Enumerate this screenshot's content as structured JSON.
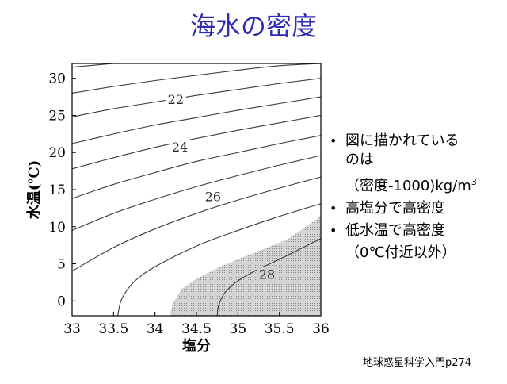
{
  "slide": {
    "title": "海水の密度",
    "citation": "地球惑星科学入門p274"
  },
  "bullets": {
    "b1_line1": "図に描かれている",
    "b1_line2": "のは",
    "b1_sub_prefix": "（密度-1000)kg/m",
    "b1_sub_sup": "3",
    "b2": "高塩分で高密度",
    "b3": "低水温で高密度",
    "b3_sub": "（0℃付近以外）"
  },
  "chart_data": {
    "type": "line",
    "title": "",
    "xlabel": "塩分",
    "ylabel": "水温(℃)",
    "xlim": [
      33,
      36
    ],
    "ylim": [
      -2,
      32
    ],
    "x_ticks": [
      33,
      33.5,
      34,
      34.5,
      35,
      35.5,
      36
    ],
    "x_tick_labels": [
      "33",
      "33.5",
      "34",
      "34.5",
      "35",
      "35.5",
      "36"
    ],
    "y_ticks": [
      0,
      5,
      10,
      15,
      20,
      25,
      30
    ],
    "y_tick_labels": [
      "0",
      "5",
      "10",
      "15",
      "20",
      "25",
      "30"
    ],
    "contour_labels": [
      {
        "text": "22",
        "x": 34.25,
        "y": 27.2
      },
      {
        "text": "24",
        "x": 34.3,
        "y": 20.8
      },
      {
        "text": "26",
        "x": 34.7,
        "y": 14.1
      },
      {
        "text": "28",
        "x": 35.35,
        "y": 3.6
      }
    ],
    "series": [
      {
        "points": [
          [
            33,
            31.5
          ],
          [
            33.5,
            32.0
          ],
          [
            34,
            32.5
          ]
        ]
      },
      {
        "points": [
          [
            33,
            28.0
          ],
          [
            33.5,
            28.9
          ],
          [
            34,
            29.7
          ],
          [
            34.5,
            30.4
          ],
          [
            35,
            31.1
          ],
          [
            35.5,
            31.7
          ],
          [
            36,
            32.0
          ]
        ]
      },
      {
        "points": [
          [
            33,
            24.8
          ],
          [
            33.5,
            25.9
          ],
          [
            34,
            26.8
          ],
          [
            34.5,
            27.7
          ],
          [
            35,
            28.5
          ],
          [
            35.5,
            29.3
          ],
          [
            36,
            30.0
          ]
        ]
      },
      {
        "points": [
          [
            33,
            21.2
          ],
          [
            33.5,
            22.5
          ],
          [
            34,
            23.7
          ],
          [
            34.5,
            24.7
          ],
          [
            35,
            25.7
          ],
          [
            35.5,
            26.6
          ],
          [
            36,
            27.5
          ]
        ]
      },
      {
        "points": [
          [
            33,
            17.8
          ],
          [
            33.5,
            19.3
          ],
          [
            34,
            20.7
          ],
          [
            34.5,
            21.9
          ],
          [
            35,
            23.0
          ],
          [
            35.5,
            24.0
          ],
          [
            36,
            25.0
          ]
        ]
      },
      {
        "points": [
          [
            33,
            13.8
          ],
          [
            33.5,
            15.7
          ],
          [
            34,
            17.3
          ],
          [
            34.5,
            18.8
          ],
          [
            35,
            20.0
          ],
          [
            35.5,
            21.2
          ],
          [
            36,
            22.3
          ]
        ]
      },
      {
        "points": [
          [
            33,
            9.5
          ],
          [
            33.5,
            11.8
          ],
          [
            34,
            13.7
          ],
          [
            34.5,
            15.4
          ],
          [
            35,
            16.9
          ],
          [
            35.5,
            18.3
          ],
          [
            36,
            19.6
          ]
        ]
      },
      {
        "points": [
          [
            33,
            4.0
          ],
          [
            33.5,
            7.2
          ],
          [
            34,
            9.7
          ],
          [
            34.5,
            11.8
          ],
          [
            35,
            13.6
          ],
          [
            35.5,
            15.2
          ],
          [
            36,
            16.7
          ]
        ]
      },
      {
        "points": [
          [
            33.55,
            -2
          ],
          [
            33.6,
            0.3
          ],
          [
            33.75,
            2.6
          ],
          [
            34,
            4.6
          ],
          [
            34.5,
            7.4
          ],
          [
            35,
            9.5
          ],
          [
            35.5,
            11.4
          ],
          [
            36,
            13.1
          ]
        ]
      },
      {
        "points": [
          [
            34.75,
            -2
          ],
          [
            34.77,
            -0.5
          ],
          [
            34.85,
            1.2
          ],
          [
            35,
            2.7
          ],
          [
            35.25,
            4.3
          ],
          [
            35.5,
            5.6
          ],
          [
            36,
            8.4
          ]
        ]
      }
    ],
    "shaded_region": {
      "label": "",
      "fill": "#c8c8c8",
      "boundary": [
        [
          34.18,
          -2
        ],
        [
          34.22,
          -0.2
        ],
        [
          34.32,
          1.6
        ],
        [
          34.5,
          3.0
        ],
        [
          34.8,
          4.7
        ],
        [
          35.2,
          6.5
        ],
        [
          35.6,
          8.3
        ],
        [
          36,
          11.4
        ]
      ]
    },
    "colors": {
      "line": "#3a3a3a",
      "axis": "#000000",
      "title": "#2e2bb0"
    }
  }
}
